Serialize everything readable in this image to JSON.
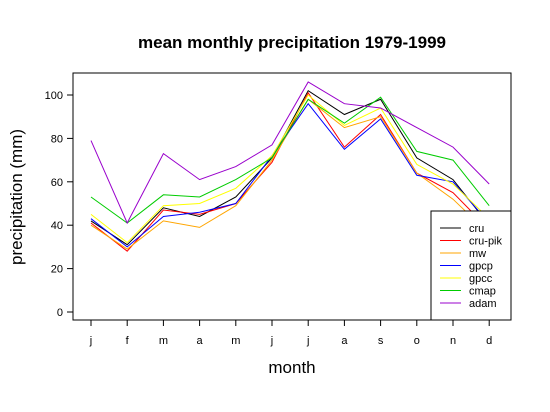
{
  "chart_data": {
    "type": "line",
    "title": "mean monthly precipitation 1979-1999",
    "xlabel": "month",
    "ylabel": "precipitation (mm)",
    "categories": [
      "j",
      "f",
      "m",
      "a",
      "m",
      "j",
      "j",
      "a",
      "s",
      "o",
      "n",
      "d"
    ],
    "ylim": [
      0,
      110
    ],
    "yticks": [
      0,
      20,
      40,
      60,
      80,
      100
    ],
    "grid": false,
    "legend_position": "bottom-right",
    "series": [
      {
        "name": "cru",
        "color": "#000000",
        "values": [
          42,
          31,
          48,
          44,
          53,
          71,
          102,
          91,
          98,
          71,
          61,
          40
        ]
      },
      {
        "name": "cru-pik",
        "color": "#ff0000",
        "values": [
          41,
          28,
          47,
          45,
          50,
          69,
          101,
          76,
          91,
          64,
          55,
          38
        ]
      },
      {
        "name": "mw",
        "color": "#ffa500",
        "values": [
          40,
          29,
          42,
          39,
          49,
          70,
          98,
          85,
          90,
          64,
          52,
          36
        ]
      },
      {
        "name": "gpcp",
        "color": "#0000ff",
        "values": [
          43,
          30,
          44,
          46,
          50,
          72,
          96,
          75,
          89,
          63,
          60,
          41
        ]
      },
      {
        "name": "gpcc",
        "color": "#ffff00",
        "values": [
          45,
          32,
          49,
          50,
          57,
          72,
          100,
          86,
          94,
          68,
          59,
          43
        ]
      },
      {
        "name": "cmap",
        "color": "#00cc00",
        "values": [
          53,
          41,
          54,
          53,
          61,
          71,
          98,
          87,
          99,
          74,
          70,
          49
        ]
      },
      {
        "name": "adam",
        "color": "#9900cc",
        "values": [
          79,
          41,
          73,
          61,
          67,
          77,
          106,
          96,
          94,
          85,
          76,
          59
        ]
      }
    ]
  }
}
